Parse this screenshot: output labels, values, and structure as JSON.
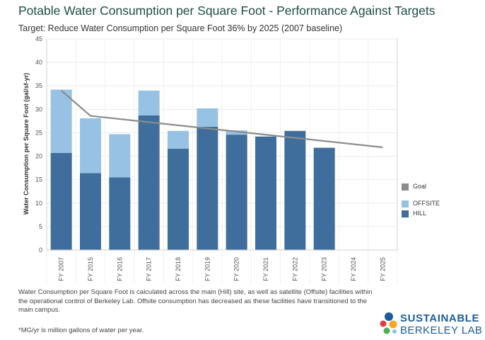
{
  "page": {
    "title": "Potable Water Consumption per Square Foot - Performance Against Targets",
    "subtitle": "Target: Reduce Water Consumption per Square Foot 36% by 2025 (2007 baseline)",
    "note": "Water Consumption per Square Foot is calculated across the main (Hill) site, as well as satellite (Offsite) facilities within the operational control of Berkeley Lab. Offsite consumption has decreased as these facilities have transitioned to the main campus.",
    "footnote": "*MG/yr is million gallons of water per year.",
    "logo": {
      "line1": "SUSTAINABLE",
      "line2": "BERKELEY LAB"
    }
  },
  "colors": {
    "hill": "#3f6e9c",
    "offsite": "#97c2e4",
    "goal": "#8c8c8c",
    "grid": "#ececec",
    "axis": "#d0d0d0"
  },
  "chart_data": {
    "type": "bar",
    "stacked": true,
    "ylabel": "Water Consumption per Square Foot (gal/sf-yr)",
    "xlabel": "",
    "ylim": [
      0,
      45
    ],
    "yticks": [
      0,
      5,
      10,
      15,
      20,
      25,
      30,
      35,
      40,
      45
    ],
    "grid": true,
    "categories": [
      "FY 2007",
      "FY 2015",
      "FY 2016",
      "FY 2017",
      "FY 2018",
      "FY 2019",
      "FY 2020",
      "FY 2021",
      "FY 2022",
      "FY 2023",
      "FY 2024",
      "FY 2025"
    ],
    "series": [
      {
        "name": "HILL",
        "values": [
          20.7,
          16.4,
          15.5,
          28.7,
          21.6,
          26.3,
          24.6,
          24.2,
          25.4,
          21.8,
          null,
          null
        ]
      },
      {
        "name": "OFFSITE",
        "values": [
          13.5,
          11.7,
          9.2,
          5.3,
          3.8,
          3.9,
          0.9,
          0.0,
          0.0,
          0.0,
          null,
          null
        ]
      },
      {
        "name": "Goal",
        "type": "line",
        "values": [
          34.0,
          28.6,
          null,
          null,
          null,
          null,
          null,
          null,
          null,
          null,
          null,
          21.9
        ]
      }
    ],
    "legend": {
      "placement": "right",
      "items": [
        {
          "label": "Goal",
          "color_key": "goal"
        },
        {
          "label": "OFFSITE",
          "color_key": "offsite"
        },
        {
          "label": "HILL",
          "color_key": "hill"
        }
      ]
    }
  }
}
